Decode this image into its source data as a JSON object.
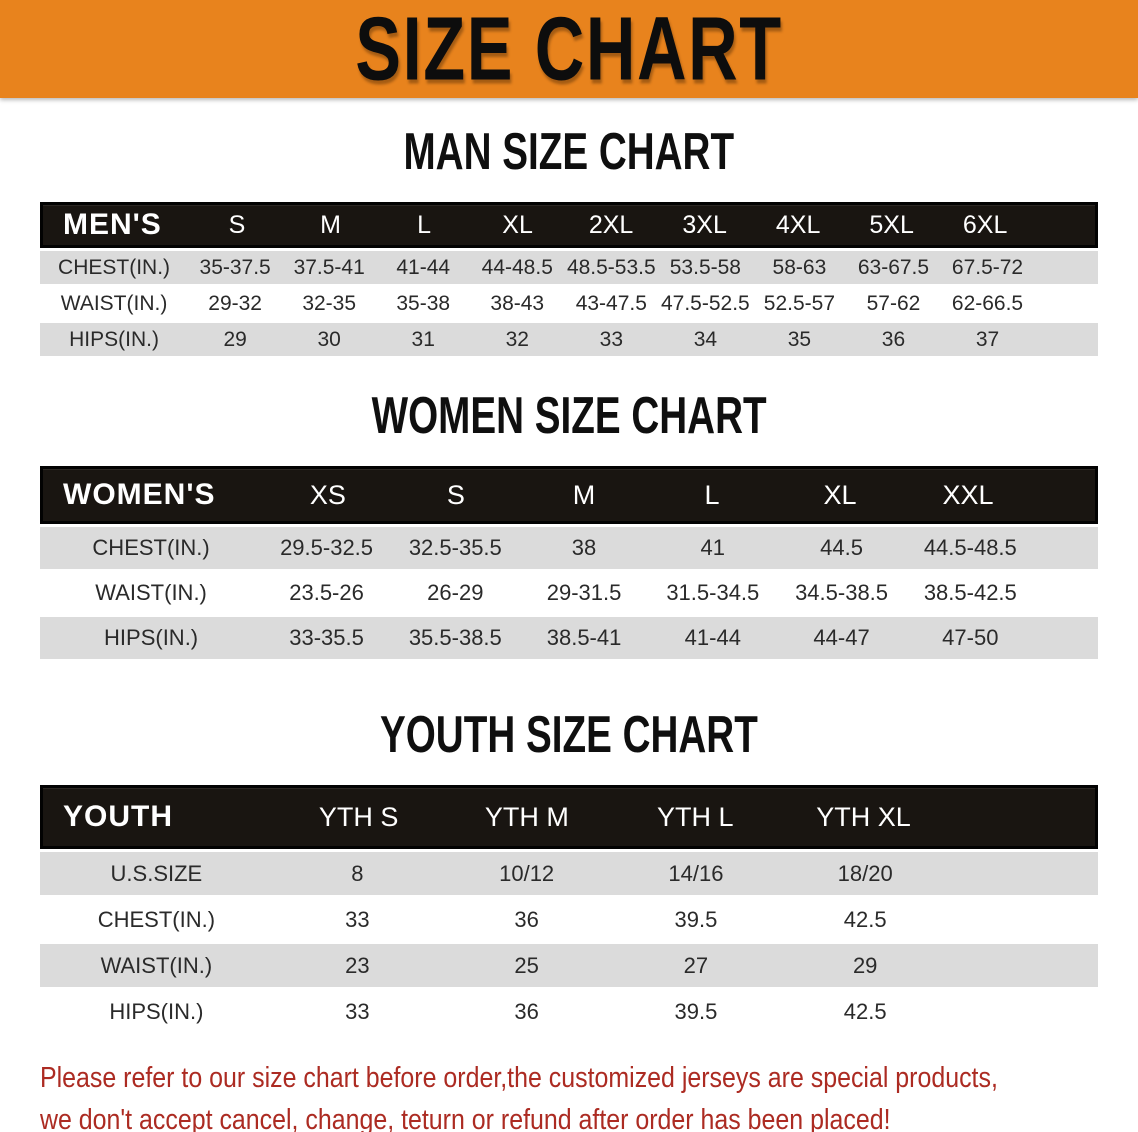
{
  "banner": {
    "title": "SIZE CHART"
  },
  "appearance": {
    "banner_bg": "#E8831D",
    "table_header_bg": "#191511",
    "row_stripe_gray": "#DBDBDB",
    "footer_text_color": "#AC2B22",
    "title_text_color": "#0d0d0d"
  },
  "sections": [
    {
      "heading": "MAN SIZE CHART",
      "table": {
        "header_label": "MEN'S",
        "columns": [
          "S",
          "M",
          "L",
          "XL",
          "2XL",
          "3XL",
          "4XL",
          "5XL",
          "6XL"
        ],
        "rows": [
          {
            "label": "CHEST(IN.)",
            "values": [
              "35-37.5",
              "37.5-41",
              "41-44",
              "44-48.5",
              "48.5-53.5",
              "53.5-58",
              "58-63",
              "63-67.5",
              "67.5-72"
            ]
          },
          {
            "label": "WAIST(IN.)",
            "values": [
              "29-32",
              "32-35",
              "35-38",
              "38-43",
              "43-47.5",
              "47.5-52.5",
              "52.5-57",
              "57-62",
              "62-66.5"
            ]
          },
          {
            "label": "HIPS(IN.)",
            "values": [
              "29",
              "30",
              "31",
              "32",
              "33",
              "34",
              "35",
              "36",
              "37"
            ]
          }
        ]
      }
    },
    {
      "heading": "WOMEN SIZE CHART",
      "table": {
        "header_label": "WOMEN'S",
        "columns": [
          "XS",
          "S",
          "M",
          "L",
          "XL",
          "XXL"
        ],
        "rows": [
          {
            "label": "CHEST(IN.)",
            "values": [
              "29.5-32.5",
              "32.5-35.5",
              "38",
              "41",
              "44.5",
              "44.5-48.5"
            ]
          },
          {
            "label": "WAIST(IN.)",
            "values": [
              "23.5-26",
              "26-29",
              "29-31.5",
              "31.5-34.5",
              "34.5-38.5",
              "38.5-42.5"
            ]
          },
          {
            "label": "HIPS(IN.)",
            "values": [
              "33-35.5",
              "35.5-38.5",
              "38.5-41",
              "41-44",
              "44-47",
              "47-50"
            ]
          }
        ]
      }
    },
    {
      "heading": "YOUTH SIZE CHART",
      "table": {
        "header_label": "YOUTH",
        "columns": [
          "YTH S",
          "YTH M",
          "YTH L",
          "YTH XL"
        ],
        "rows": [
          {
            "label": "U.S.SIZE",
            "values": [
              "8",
              "10/12",
              "14/16",
              "18/20"
            ]
          },
          {
            "label": "CHEST(IN.)",
            "values": [
              "33",
              "36",
              "39.5",
              "42.5"
            ]
          },
          {
            "label": "WAIST(IN.)",
            "values": [
              "23",
              "25",
              "27",
              "29"
            ]
          },
          {
            "label": "HIPS(IN.)",
            "values": [
              "33",
              "36",
              "39.5",
              "42.5"
            ]
          }
        ]
      }
    }
  ],
  "footer": {
    "lines": [
      "Please refer to our size chart before order,the customized jerseys are special products,",
      "we don't accept cancel, change, teturn or refund after order has been placed!"
    ]
  }
}
